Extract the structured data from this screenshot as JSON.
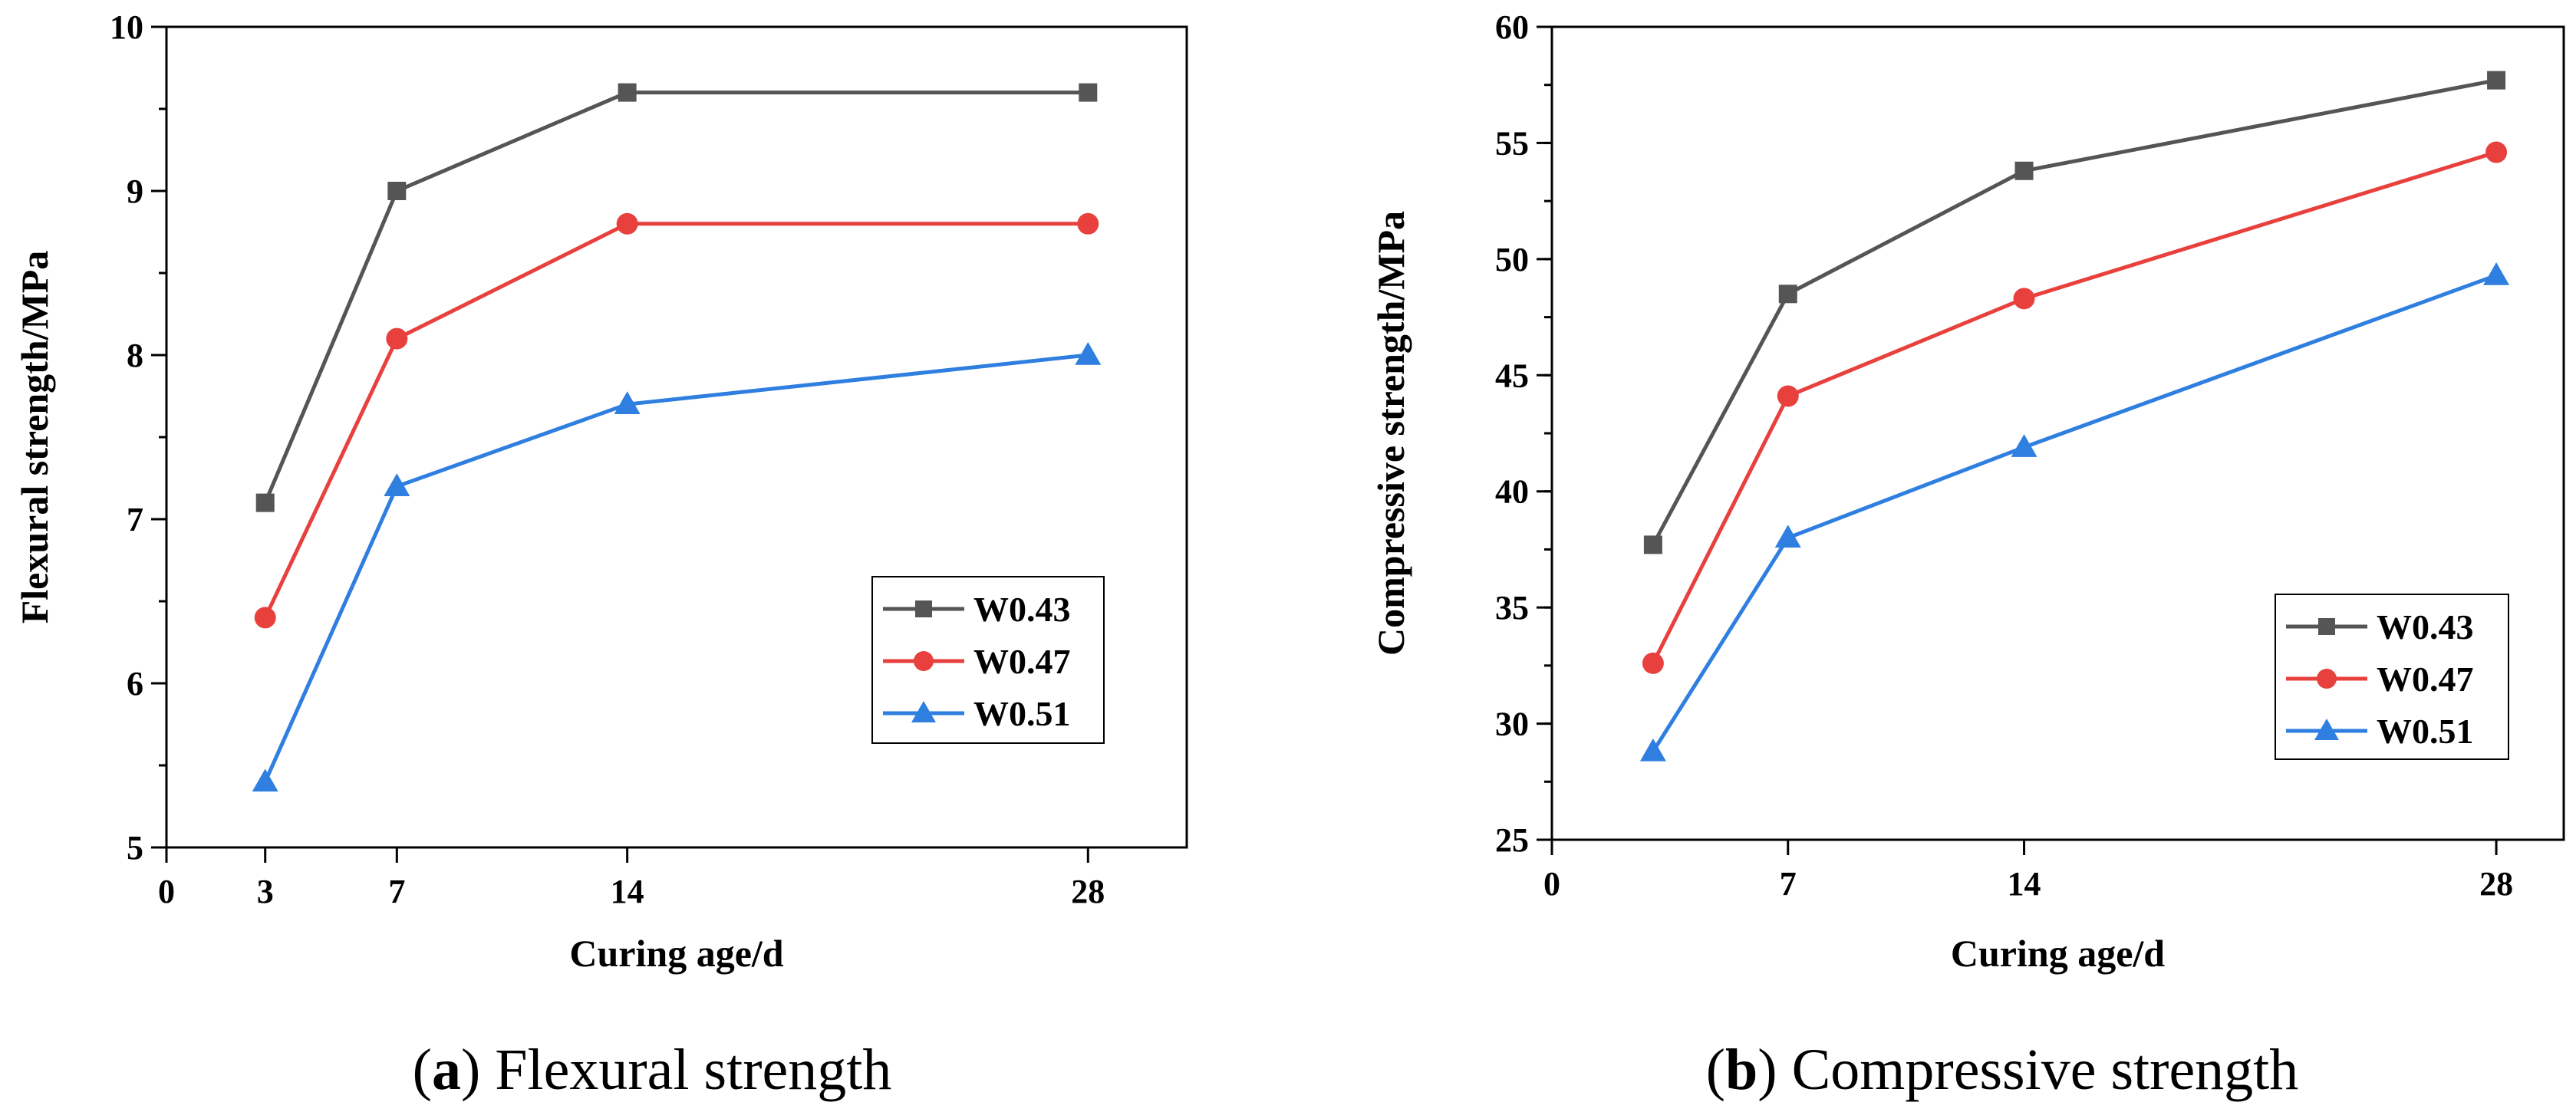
{
  "chart_data": [
    {
      "type": "line",
      "id": "a",
      "caption_letter": "a",
      "caption_text": "Flexural strength",
      "xlabel": "Curing age/d",
      "ylabel": "Flexural strength/MPa",
      "xlim": [
        0,
        31
      ],
      "ylim": [
        5,
        10
      ],
      "xticks": [
        0,
        3,
        7,
        14,
        28
      ],
      "yticks": [
        5,
        6,
        7,
        8,
        9,
        10
      ],
      "y_minor_step": 0.5,
      "x": [
        3,
        7,
        14,
        28
      ],
      "legend_position": "lower-right",
      "series": [
        {
          "name": "W0.43",
          "color": "#555555",
          "marker": "square",
          "values": [
            7.1,
            9.0,
            9.6,
            9.6
          ]
        },
        {
          "name": "W0.47",
          "color": "#e8413d",
          "marker": "circle",
          "values": [
            6.4,
            8.1,
            8.8,
            8.8
          ]
        },
        {
          "name": "W0.51",
          "color": "#2f7fe0",
          "marker": "triangle",
          "values": [
            5.4,
            7.2,
            7.7,
            8.0
          ]
        }
      ]
    },
    {
      "type": "line",
      "id": "b",
      "caption_letter": "b",
      "caption_text": "Compressive strength",
      "xlabel": "Curing age/d",
      "ylabel": "Compressive strength/MPa",
      "xlim": [
        0,
        30
      ],
      "ylim": [
        25,
        60
      ],
      "xticks": [
        0,
        7,
        14,
        28
      ],
      "yticks": [
        25,
        30,
        35,
        40,
        45,
        50,
        55,
        60
      ],
      "y_minor_step": 2.5,
      "x": [
        3,
        7,
        14,
        28
      ],
      "legend_position": "lower-right",
      "series": [
        {
          "name": "W0.43",
          "color": "#555555",
          "marker": "square",
          "values": [
            37.7,
            48.5,
            53.8,
            57.7
          ]
        },
        {
          "name": "W0.47",
          "color": "#e8413d",
          "marker": "circle",
          "values": [
            32.6,
            44.1,
            48.3,
            54.6
          ]
        },
        {
          "name": "W0.51",
          "color": "#2f7fe0",
          "marker": "triangle",
          "values": [
            28.8,
            38.0,
            41.9,
            49.3
          ]
        }
      ]
    }
  ]
}
